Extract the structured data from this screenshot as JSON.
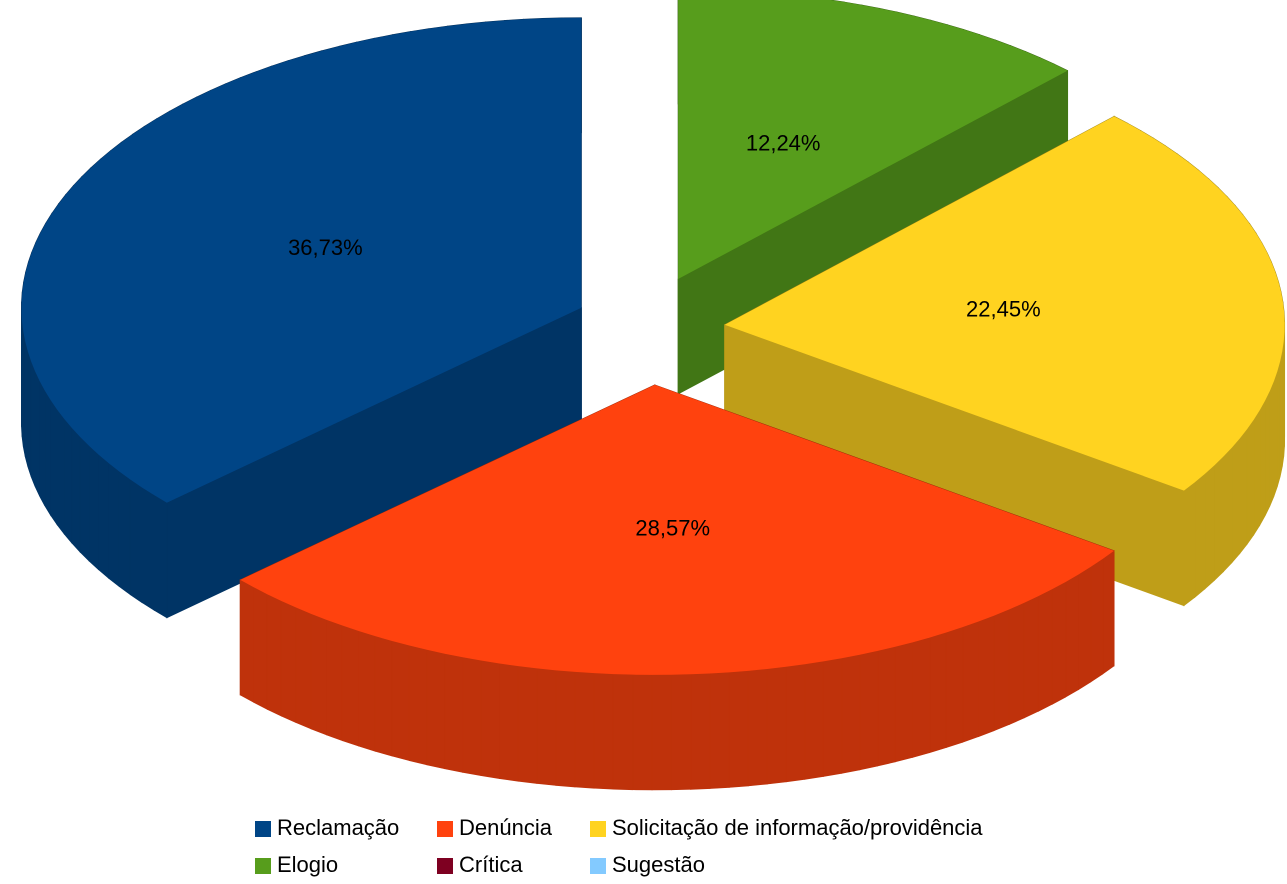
{
  "chart_data": {
    "type": "pie",
    "categories": [
      "Reclamação",
      "Denúncia",
      "Solicitação de informação/providência",
      "Elogio",
      "Crítica",
      "Sugestão"
    ],
    "values": [
      36.73,
      28.57,
      22.45,
      12.24,
      0,
      0
    ],
    "value_labels": [
      "36,73%",
      "28,57%",
      "22,45%",
      "12,24%",
      null,
      null
    ],
    "colors": [
      "#004586",
      "#ff420e",
      "#ffd320",
      "#579d1c",
      "#7e0021",
      "#83caff"
    ]
  }
}
